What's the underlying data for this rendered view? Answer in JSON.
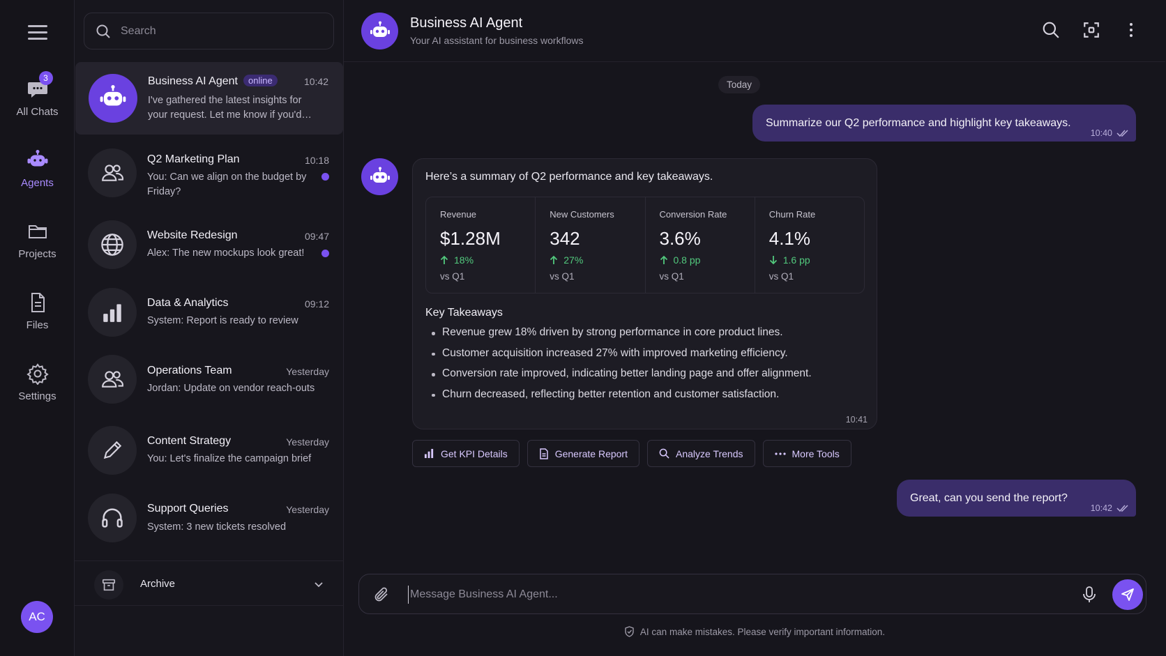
{
  "rail": {
    "items": [
      {
        "label": "All Chats",
        "icon": "chat-bubble-icon",
        "badge": "3"
      },
      {
        "label": "Agents",
        "icon": "robot-icon"
      },
      {
        "label": "Projects",
        "icon": "folder-icon"
      },
      {
        "label": "Files",
        "icon": "file-icon"
      },
      {
        "label": "Settings",
        "icon": "gear-icon"
      }
    ],
    "avatar_initials": "AC"
  },
  "search": {
    "placeholder": "Search"
  },
  "chats": [
    {
      "name": "Business AI Agent",
      "status": "online",
      "time": "10:42",
      "preview": "I've gathered the latest insights for your request. Let me know if you'd…",
      "icon": "robot-icon"
    },
    {
      "name": "Q2 Marketing Plan",
      "time": "10:18",
      "preview": "You: Can we align on the budget by Friday?",
      "icon": "users-icon",
      "unread": true
    },
    {
      "name": "Website Redesign",
      "time": "09:47",
      "preview": "Alex: The new mockups look great!",
      "icon": "globe-icon",
      "unread": true
    },
    {
      "name": "Data & Analytics",
      "time": "09:12",
      "preview": "System: Report is ready to review",
      "icon": "bar-chart-icon"
    },
    {
      "name": "Operations Team",
      "time": "Yesterday",
      "preview": "Jordan: Update on vendor reach-outs",
      "icon": "users-icon"
    },
    {
      "name": "Content Strategy",
      "time": "Yesterday",
      "preview": "You: Let's finalize the campaign brief",
      "icon": "pencil-icon"
    },
    {
      "name": "Support Queries",
      "time": "Yesterday",
      "preview": "System: 3 new tickets resolved",
      "icon": "headset-icon"
    }
  ],
  "archive": {
    "label": "Archive"
  },
  "header": {
    "title": "Business AI Agent",
    "subtitle": "Your AI assistant for business workflows"
  },
  "conversation": {
    "date_divider": "Today",
    "user_message_1": {
      "text": "Summarize our Q2 performance and highlight key takeaways.",
      "time": "10:40"
    },
    "bot_reply": {
      "intro": "Here’s a summary of Q2 performance and key takeaways.",
      "kpis": [
        {
          "label": "Revenue",
          "value": "$1.28M",
          "delta": "18%",
          "direction": "up",
          "compare": "vs Q1"
        },
        {
          "label": "New Customers",
          "value": "342",
          "delta": "27%",
          "direction": "up",
          "compare": "vs Q1"
        },
        {
          "label": "Conversion Rate",
          "value": "3.6%",
          "delta": "0.8 pp",
          "direction": "up",
          "compare": "vs Q1"
        },
        {
          "label": "Churn Rate",
          "value": "4.1%",
          "delta": "1.6 pp",
          "direction": "down",
          "compare": "vs Q1"
        }
      ],
      "takeaways_title": "Key Takeaways",
      "takeaways": [
        "Revenue grew 18% driven by strong performance in core product lines.",
        "Customer acquisition increased 27% with improved marketing efficiency.",
        "Conversion rate improved, indicating better landing page and offer alignment.",
        "Churn decreased, reflecting better retention and customer satisfaction."
      ],
      "time": "10:41"
    },
    "tools": [
      {
        "label": "Get KPI Details",
        "icon": "bar-chart-icon"
      },
      {
        "label": "Generate Report",
        "icon": "document-icon"
      },
      {
        "label": "Analyze Trends",
        "icon": "search-icon"
      },
      {
        "label": "More Tools",
        "icon": "ellipsis-icon"
      }
    ],
    "user_message_2": {
      "text": "Great, can you send the report?",
      "time": "10:42"
    }
  },
  "composer": {
    "placeholder": "Message Business AI Agent..."
  },
  "disclaimer": "AI can make mistakes. Please verify important information.",
  "colors": {
    "accent": "#7a52f0",
    "positive": "#52c97d",
    "background": "#16151c"
  }
}
